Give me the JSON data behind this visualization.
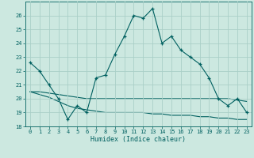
{
  "xlabel": "Humidex (Indice chaleur)",
  "background_color": "#cce8e0",
  "grid_color": "#aacfc8",
  "line_color": "#006060",
  "xlim": [
    -0.5,
    23.5
  ],
  "ylim": [
    18,
    27
  ],
  "yticks": [
    18,
    19,
    20,
    21,
    22,
    23,
    24,
    25,
    26
  ],
  "xticks": [
    0,
    1,
    2,
    3,
    4,
    5,
    6,
    7,
    8,
    9,
    10,
    11,
    12,
    13,
    14,
    15,
    16,
    17,
    18,
    19,
    20,
    21,
    22,
    23
  ],
  "x": [
    0,
    1,
    2,
    3,
    4,
    5,
    6,
    7,
    8,
    9,
    10,
    11,
    12,
    13,
    14,
    15,
    16,
    17,
    18,
    19,
    20,
    21,
    22,
    23
  ],
  "line1_y": [
    22.6,
    22.0,
    21.0,
    20.0,
    18.5,
    19.5,
    19.0,
    21.5,
    21.7,
    23.2,
    24.5,
    26.0,
    25.8,
    26.5,
    24.0,
    24.5,
    23.5,
    23.0,
    22.5,
    21.5,
    20.0,
    19.5,
    20.0,
    19.0
  ],
  "line2_y": [
    20.5,
    20.5,
    20.4,
    20.3,
    20.2,
    20.1,
    20.0,
    20.0,
    20.0,
    20.0,
    20.0,
    20.0,
    20.0,
    20.0,
    20.0,
    20.0,
    20.0,
    20.0,
    20.0,
    20.0,
    20.0,
    20.0,
    19.9,
    19.8
  ],
  "line3_y": [
    20.5,
    20.3,
    20.1,
    19.8,
    19.5,
    19.3,
    19.2,
    19.1,
    19.0,
    19.0,
    19.0,
    19.0,
    19.0,
    18.9,
    18.9,
    18.8,
    18.8,
    18.8,
    18.7,
    18.7,
    18.6,
    18.6,
    18.5,
    18.5
  ]
}
